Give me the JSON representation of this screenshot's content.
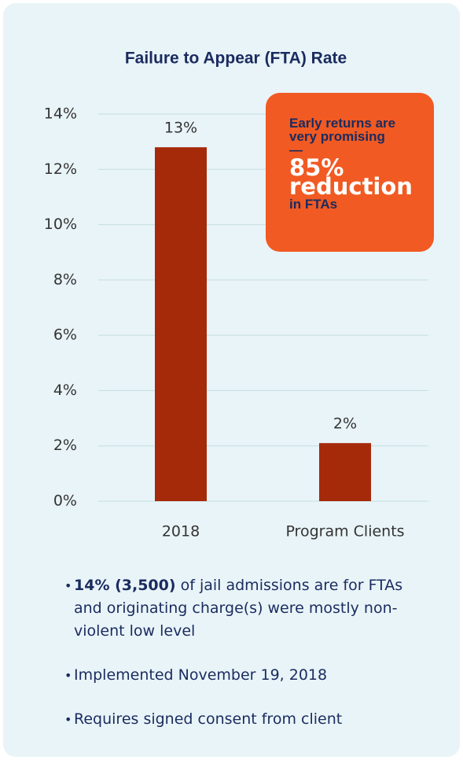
{
  "chart_data": {
    "type": "bar",
    "title": "Failure to Appear (FTA) Rate",
    "categories": [
      "2018",
      "Program Clients"
    ],
    "values": [
      12.8,
      2.1
    ],
    "value_labels": [
      "13%",
      "2%"
    ],
    "color": "#a52a0a",
    "ylim": [
      0,
      14
    ],
    "yticks": [
      {
        "value": 0,
        "label": "0%"
      },
      {
        "value": 2,
        "label": "2%"
      },
      {
        "value": 4,
        "label": "4%"
      },
      {
        "value": 6,
        "label": "6%"
      },
      {
        "value": 8,
        "label": "8%"
      },
      {
        "value": 10,
        "label": "10%"
      },
      {
        "value": 12,
        "label": "12%"
      },
      {
        "value": 14,
        "label": "14%"
      }
    ],
    "grid": true,
    "callout": {
      "intro": "Early returns are very promising —",
      "highlight": "85% reduction",
      "outro": "in FTAs"
    }
  },
  "bullets": [
    {
      "bold": "14% (3,500)",
      "text": "of jail admissions are for FTAs and originating charge(s) were mostly non-violent low level"
    },
    {
      "text": "Implemented November 19, 2018"
    },
    {
      "text": "Requires signed consent from client"
    }
  ]
}
